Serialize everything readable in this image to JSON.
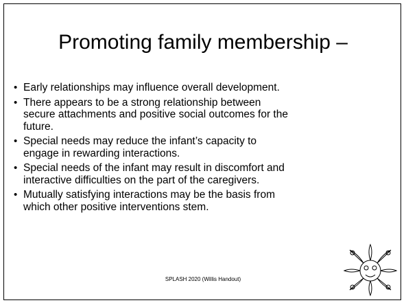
{
  "slide": {
    "title": "Promoting family membership –",
    "bullets": [
      [
        "Early relationships may influence overall development."
      ],
      [
        "There appears to be a strong relationship between",
        "secure attachments and positive social outcomes for the",
        "future."
      ],
      [
        "Special needs may reduce the infant’s capacity to",
        "engage in rewarding interactions."
      ],
      [
        "Special needs of the infant may result in discomfort and",
        "interactive difficulties on the part of the caregivers."
      ],
      [
        "Mutually satisfying interactions may be the basis from",
        "which other positive interventions stem."
      ]
    ],
    "footer": "SPLASH 2020 (Willis Handout)"
  }
}
